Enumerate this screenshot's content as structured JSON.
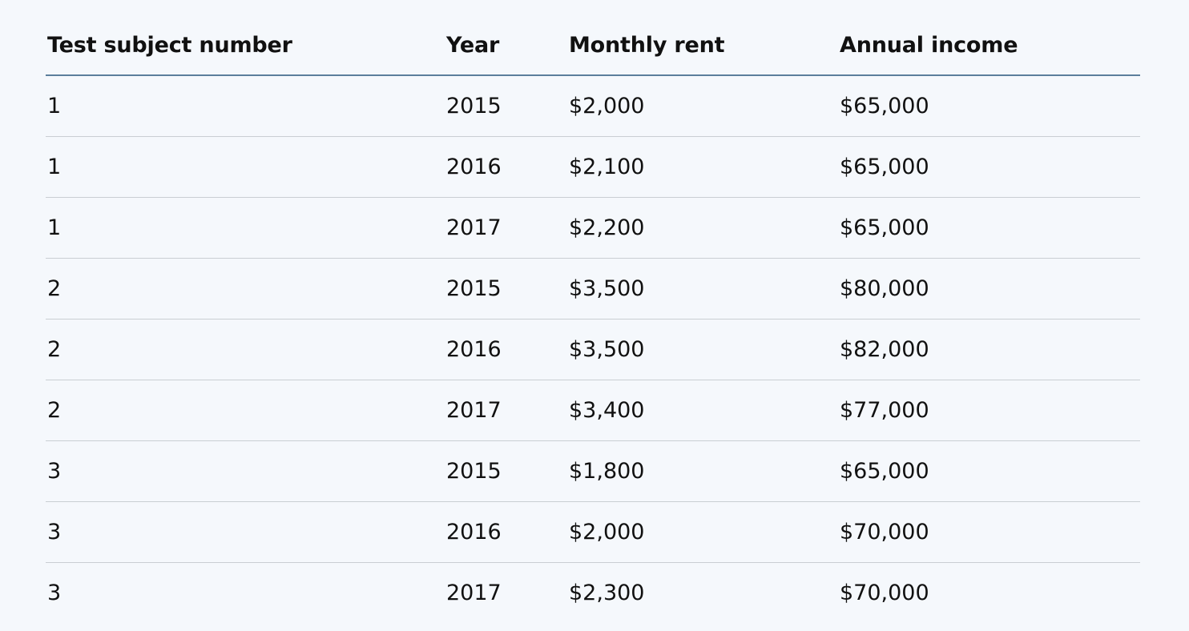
{
  "table": {
    "headers": [
      "Test subject number",
      "Year",
      "Monthly rent",
      "Annual income"
    ],
    "rows": [
      [
        "1",
        "2015",
        "$2,000",
        "$65,000"
      ],
      [
        "1",
        "2016",
        "$2,100",
        "$65,000"
      ],
      [
        "1",
        "2017",
        "$2,200",
        "$65,000"
      ],
      [
        "2",
        "2015",
        "$3,500",
        "$80,000"
      ],
      [
        "2",
        "2016",
        "$3,500",
        "$82,000"
      ],
      [
        "2",
        "2017",
        "$3,400",
        "$77,000"
      ],
      [
        "3",
        "2015",
        "$1,800",
        "$65,000"
      ],
      [
        "3",
        "2016",
        "$2,000",
        "$70,000"
      ],
      [
        "3",
        "2017",
        "$2,300",
        "$70,000"
      ]
    ]
  },
  "colors": {
    "background": "#f5f8fc",
    "header_rule": "#5b7e9c",
    "row_rule": "#c9ced3",
    "text": "#111111"
  }
}
